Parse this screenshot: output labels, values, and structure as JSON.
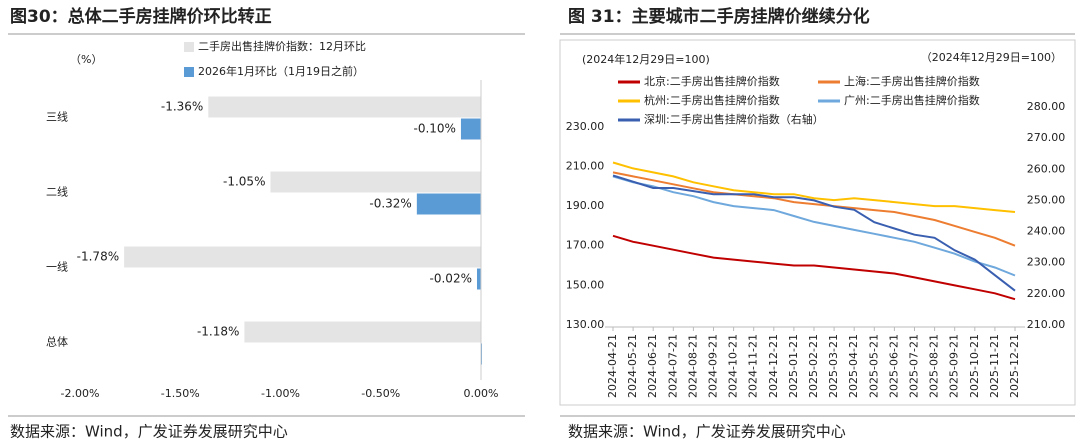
{
  "chart_data": [
    {
      "type": "bar",
      "orientation": "horizontal",
      "title": "图30：总体二手房挂牌价环比转正",
      "unit_label": "（%）",
      "categories": [
        "三线",
        "二线",
        "一线",
        "总体"
      ],
      "series": [
        {
          "name": "二手房出售挂牌价指数：12月环比",
          "color": "#e4e4e4",
          "values": [
            -1.36,
            -1.05,
            -1.78,
            -1.18
          ],
          "value_labels": [
            "-1.36%",
            "-1.05%",
            "-1.78%",
            "-1.18%"
          ]
        },
        {
          "name": "2026年1月环比（1月19日之前）",
          "color": "#5b9bd5",
          "values": [
            -0.1,
            -0.32,
            -0.02,
            0.005
          ],
          "value_labels": [
            "-0.10%",
            "-0.32%",
            "-0.02%",
            null
          ]
        }
      ],
      "xlim": [
        -2,
        0
      ],
      "xticks": [
        {
          "value": -2,
          "label": "-2.00%"
        },
        {
          "value": -1.5,
          "label": "-1.50%"
        },
        {
          "value": -1,
          "label": "-1.00%"
        },
        {
          "value": -0.5,
          "label": "-0.50%"
        },
        {
          "value": 0,
          "label": "0.00%"
        }
      ],
      "source": "数据来源：Wind，广发证券发展研究中心"
    },
    {
      "type": "line",
      "title": "图 31：主要城市二手房挂牌价继续分化",
      "unit_label": "(2024年12月29日=100)",
      "unit_label_right": "（2024年12月29日=100）",
      "x": [
        "2024-04-21",
        "2024-05-21",
        "2024-06-21",
        "2024-07-21",
        "2024-08-21",
        "2024-09-21",
        "2024-10-21",
        "2024-11-21",
        "2024-12-21",
        "2025-01-21",
        "2025-02-21",
        "2025-03-21",
        "2025-04-21",
        "2025-05-21",
        "2025-06-21",
        "2025-07-21",
        "2025-08-21",
        "2025-09-21",
        "2025-10-21",
        "2025-11-21",
        "2025-12-21"
      ],
      "series": [
        {
          "name": "北京:二手房出售挂牌价指数",
          "color": "#c00000",
          "values": [
            175,
            172,
            170,
            168,
            166,
            164,
            163,
            162,
            161,
            160,
            160,
            159,
            158,
            157,
            156,
            154,
            152,
            150,
            148,
            146,
            143
          ]
        },
        {
          "name": "上海:二手房出售挂牌价指数",
          "color": "#ed7d31",
          "values": [
            207,
            205,
            203,
            201,
            199,
            197,
            196,
            195,
            194,
            192,
            191,
            190,
            189,
            188,
            187,
            185,
            183,
            180,
            177,
            174,
            170
          ]
        },
        {
          "name": "杭州:二手房出售挂牌价指数",
          "color": "#ffc000",
          "values": [
            212,
            209,
            207,
            205,
            202,
            200,
            198,
            197,
            196,
            196,
            194,
            193,
            194,
            193,
            192,
            191,
            190,
            190,
            189,
            188,
            187
          ]
        },
        {
          "name": "广州:二手房出售挂牌价指数",
          "color": "#6fa8dc",
          "values": [
            205,
            202,
            200,
            197,
            195,
            192,
            190,
            189,
            188,
            185,
            182,
            180,
            178,
            176,
            174,
            172,
            169,
            166,
            162,
            159,
            155
          ]
        },
        {
          "name": "深圳:二手房出售挂牌价指数（右轴）",
          "color": "#3a5fb0",
          "axis": "y2",
          "values": [
            258,
            256,
            254,
            254,
            253,
            252,
            252,
            252,
            251,
            251,
            250,
            248,
            247,
            243,
            241,
            239,
            238,
            234,
            231,
            226,
            221
          ]
        }
      ],
      "ylim": [
        130,
        240
      ],
      "yticks": [
        {
          "value": 130,
          "label": "130.00"
        },
        {
          "value": 150,
          "label": "150.00"
        },
        {
          "value": 170,
          "label": "170.00"
        },
        {
          "value": 190,
          "label": "190.00"
        },
        {
          "value": 210,
          "label": "210.00"
        },
        {
          "value": 230,
          "label": "230.00"
        }
      ],
      "y2lim": [
        210,
        280
      ],
      "y2ticks": [
        {
          "value": 210,
          "label": "210.00"
        },
        {
          "value": 220,
          "label": "220.00"
        },
        {
          "value": 230,
          "label": "230.00"
        },
        {
          "value": 240,
          "label": "240.00"
        },
        {
          "value": 250,
          "label": "250.00"
        },
        {
          "value": 260,
          "label": "260.00"
        },
        {
          "value": 270,
          "label": "270.00"
        },
        {
          "value": 280,
          "label": "280.00"
        }
      ],
      "source": "数据来源：Wind，广发证券发展研究中心"
    }
  ]
}
